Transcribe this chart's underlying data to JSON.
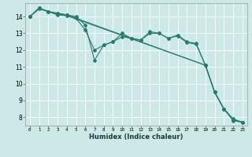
{
  "xlabel": "Humidex (Indice chaleur)",
  "ylabel": "",
  "bg_color": "#cce9e7",
  "grid_color": "#ffffff",
  "line_color": "#2a7a6e",
  "xlim": [
    -0.5,
    23.5
  ],
  "ylim": [
    7.5,
    14.8
  ],
  "yticks": [
    8,
    9,
    10,
    11,
    12,
    13,
    14
  ],
  "xticks": [
    0,
    1,
    2,
    3,
    4,
    5,
    6,
    7,
    8,
    9,
    10,
    11,
    12,
    13,
    14,
    15,
    16,
    17,
    18,
    19,
    20,
    21,
    22,
    23
  ],
  "lines": [
    {
      "x": [
        0,
        1,
        2,
        3,
        4,
        5,
        6,
        7,
        8,
        9,
        10,
        11,
        12,
        13,
        14,
        15,
        16,
        17,
        18,
        19,
        20,
        21,
        22,
        23
      ],
      "y": [
        14.0,
        14.5,
        14.3,
        14.2,
        14.1,
        14.0,
        13.5,
        11.4,
        12.3,
        12.5,
        13.0,
        12.7,
        12.6,
        13.1,
        13.0,
        12.7,
        12.9,
        12.5,
        12.4,
        11.1,
        9.5,
        8.5,
        7.9,
        7.7
      ]
    },
    {
      "x": [
        0,
        1,
        2,
        3,
        4,
        5,
        6,
        7,
        8,
        9,
        10,
        11,
        12,
        13,
        14,
        15,
        16,
        17,
        18,
        19,
        20,
        21,
        22,
        23
      ],
      "y": [
        14.0,
        14.5,
        14.3,
        14.2,
        14.1,
        13.9,
        13.2,
        12.0,
        12.3,
        12.5,
        12.8,
        12.7,
        12.6,
        13.0,
        13.0,
        12.7,
        12.85,
        12.45,
        12.35,
        11.1,
        9.5,
        8.5,
        7.85,
        7.7
      ]
    },
    {
      "x": [
        0,
        1,
        2,
        3,
        4,
        19,
        20,
        21,
        22,
        23
      ],
      "y": [
        14.0,
        14.5,
        14.3,
        14.15,
        14.1,
        11.1,
        9.5,
        8.5,
        7.85,
        7.7
      ]
    },
    {
      "x": [
        0,
        1,
        2,
        3,
        4,
        19,
        20,
        21,
        22,
        23
      ],
      "y": [
        14.0,
        14.45,
        14.3,
        14.1,
        14.05,
        11.1,
        9.5,
        8.5,
        7.8,
        7.7
      ]
    }
  ]
}
